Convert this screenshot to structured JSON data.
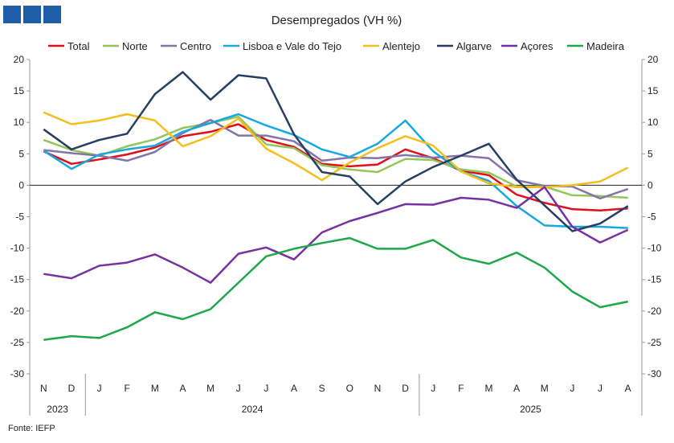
{
  "chart_data": {
    "type": "line",
    "title": "Desempregados  (VH %)",
    "source": "Fonte:  IEFP",
    "ylim": [
      -30,
      20
    ],
    "yticks": [
      20,
      15,
      10,
      5,
      0,
      -5,
      -10,
      -15,
      -20,
      -25,
      -30
    ],
    "grid": false,
    "legend_placement": "top",
    "months": [
      "N",
      "D",
      "J",
      "F",
      "M",
      "A",
      "M",
      "J",
      "J",
      "A",
      "S",
      "O",
      "N",
      "D",
      "J",
      "F",
      "M",
      "A",
      "M",
      "J",
      "J",
      "A"
    ],
    "years": [
      {
        "label": "2023",
        "start": 0,
        "end": 1
      },
      {
        "label": "2024",
        "start": 2,
        "end": 13
      },
      {
        "label": "2025",
        "start": 14,
        "end": 21
      }
    ],
    "series": [
      {
        "name": "Total",
        "color": "#e0101a",
        "values": [
          5.4,
          3.4,
          4.1,
          4.9,
          6.0,
          7.8,
          8.5,
          9.7,
          7.2,
          6.1,
          3.4,
          3.0,
          3.3,
          5.7,
          4.3,
          2.3,
          1.6,
          -1.5,
          -2.8,
          -3.8,
          -4.0,
          -3.7
        ]
      },
      {
        "name": "Norte",
        "color": "#92c659",
        "values": [
          7.2,
          5.6,
          4.7,
          6.2,
          7.3,
          9.1,
          9.9,
          10.9,
          6.5,
          5.9,
          3.2,
          2.5,
          2.1,
          4.2,
          4.0,
          2.5,
          2.0,
          -0.2,
          -0.2,
          -1.6,
          -1.7,
          -2.0
        ]
      },
      {
        "name": "Centro",
        "color": "#8473a8",
        "values": [
          5.6,
          5.1,
          4.7,
          3.9,
          5.3,
          8.3,
          10.4,
          7.9,
          7.9,
          7.0,
          3.9,
          4.4,
          4.3,
          4.8,
          4.4,
          4.7,
          4.3,
          0.8,
          -0.1,
          -0.2,
          -2.1,
          -0.6
        ]
      },
      {
        "name": "Lisboa e Vale do Tejo",
        "color": "#19a7e0",
        "values": [
          5.5,
          2.6,
          4.9,
          5.7,
          6.3,
          8.5,
          9.9,
          11.3,
          9.5,
          8.0,
          5.7,
          4.5,
          6.6,
          10.3,
          5.4,
          2.2,
          0.7,
          -3.3,
          -6.4,
          -6.6,
          -6.6,
          -6.8
        ]
      },
      {
        "name": "Alentejo",
        "color": "#f5be1f",
        "values": [
          11.6,
          9.7,
          10.3,
          11.3,
          10.3,
          6.2,
          7.8,
          10.6,
          5.8,
          3.5,
          0.8,
          3.6,
          5.9,
          7.8,
          6.3,
          2.2,
          0.3,
          -0.3,
          -0.3,
          0.0,
          0.6,
          2.8
        ]
      },
      {
        "name": "Algarve",
        "color": "#263f63",
        "values": [
          8.9,
          5.7,
          7.2,
          8.2,
          14.5,
          18.0,
          13.6,
          17.5,
          17.0,
          8.1,
          2.1,
          1.4,
          -3.0,
          0.6,
          2.9,
          4.7,
          6.6,
          0.9,
          -3.2,
          -7.3,
          -6.1,
          -3.3
        ]
      },
      {
        "name": "Açores",
        "color": "#7731a0",
        "values": [
          -14.1,
          -14.8,
          -12.8,
          -12.3,
          -11.0,
          -13.1,
          -15.5,
          -10.9,
          -9.9,
          -11.8,
          -7.5,
          -5.7,
          -4.4,
          -3.0,
          -3.1,
          -2.0,
          -2.3,
          -3.6,
          -0.3,
          -6.6,
          -9.1,
          -7.1
        ]
      },
      {
        "name": "Madeira",
        "color": "#1fa74a",
        "values": [
          -24.6,
          -24.0,
          -24.3,
          -22.6,
          -20.2,
          -21.3,
          -19.7,
          -15.5,
          -11.3,
          -10.1,
          -9.2,
          -8.4,
          -10.1,
          -10.1,
          -8.7,
          -11.5,
          -12.5,
          -10.7,
          -13.1,
          -16.9,
          -19.4,
          -18.5
        ]
      }
    ]
  }
}
